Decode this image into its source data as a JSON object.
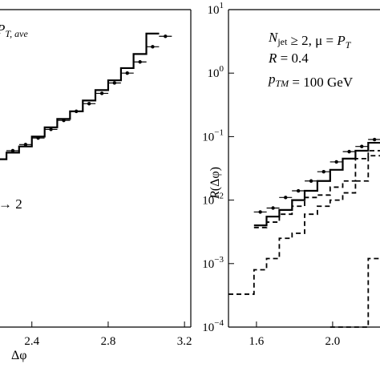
{
  "chart_data": [
    {
      "type": "step",
      "log_y": true,
      "xlim": [
        2.233,
        3.233
      ],
      "ylim": [
        0.0001,
        10
      ],
      "xticks": [
        2.4,
        2.8,
        3.2
      ],
      "xlabel": "Δφ",
      "annotations": [
        {
          "parts": [
            {
              "text": "P",
              "italic": true
            },
            {
              "text": "T, ave",
              "italic": true,
              "sub": true
            }
          ]
        },
        {
          "parts": [
            {
              "text": "→ 2"
            }
          ]
        }
      ],
      "series": [
        {
          "kind": "step",
          "dash": false,
          "color": "#000000",
          "bins": [
            2.2,
            2.267,
            2.333,
            2.4,
            2.467,
            2.533,
            2.6,
            2.667,
            2.733,
            2.8,
            2.867,
            2.933,
            3.0,
            3.067
          ],
          "values": [
            0.044,
            0.056,
            0.07,
            0.1,
            0.14,
            0.19,
            0.25,
            0.37,
            0.54,
            0.77,
            1.2,
            2.0,
            4.2
          ]
        },
        {
          "kind": "points",
          "color": "#000000",
          "x": [
            2.3,
            2.367,
            2.433,
            2.5,
            2.567,
            2.633,
            2.7,
            2.767,
            2.833,
            2.9,
            2.967,
            3.033,
            3.1
          ],
          "values": [
            0.06,
            0.075,
            0.095,
            0.13,
            0.18,
            0.25,
            0.33,
            0.48,
            0.7,
            1.0,
            1.5,
            2.6,
            3.8
          ]
        }
      ]
    },
    {
      "type": "step",
      "log_y": true,
      "xlim": [
        1.453,
        2.253
      ],
      "ylim": [
        0.0001,
        10
      ],
      "xticks": [
        1.6,
        {
          "value": 2,
          "label": "2.0"
        }
      ],
      "yticks": [
        {
          "value": 0.0001,
          "label": "10",
          "exponent": "−4"
        },
        {
          "value": 0.001,
          "label": "10",
          "exponent": "−3"
        },
        {
          "value": 0.01,
          "label": "10",
          "exponent": "−2"
        },
        {
          "value": 0.1,
          "label": "10",
          "exponent": "−1"
        },
        {
          "value": 1,
          "label": "10",
          "exponent": "0"
        },
        {
          "value": 10,
          "label": "10",
          "exponent": "1"
        }
      ],
      "ylabel": {
        "parts": [
          {
            "text": "R",
            "italic": true
          },
          {
            "text": "(Δφ)"
          }
        ]
      },
      "annotations": [
        {
          "parts": [
            {
              "text": "N",
              "italic": true
            },
            {
              "text": "jet",
              "sub": true
            },
            {
              "text": " ≥ 2, μ = "
            },
            {
              "text": "P",
              "italic": true
            },
            {
              "text": "T",
              "italic": true,
              "sub": true
            }
          ]
        },
        {
          "parts": [
            {
              "text": "R",
              "italic": true
            },
            {
              "text": " = 0.4"
            }
          ]
        },
        {
          "parts": [
            {
              "text": "p",
              "italic": true
            },
            {
              "text": "TM",
              "italic": true,
              "sub": true
            },
            {
              "text": " = 100 GeV"
            }
          ]
        }
      ],
      "series": [
        {
          "kind": "step",
          "dash": false,
          "color": "#000000",
          "bins": [
            1.587,
            1.653,
            1.72,
            1.787,
            1.853,
            1.92,
            1.987,
            2.053,
            2.12,
            2.187,
            2.253
          ],
          "values": [
            0.004,
            0.0055,
            0.007,
            0.01,
            0.014,
            0.02,
            0.03,
            0.045,
            0.06,
            0.08
          ]
        },
        {
          "kind": "step",
          "dash": true,
          "color": "#000000",
          "bins": [
            1.587,
            1.653,
            1.72,
            1.787,
            1.853,
            1.92,
            1.987,
            2.053,
            2.12,
            2.187,
            2.253
          ],
          "values": [
            0.0037,
            0.0045,
            0.006,
            0.008,
            0.011,
            0.012,
            0.016,
            0.02,
            0.045,
            0.06
          ]
        },
        {
          "kind": "step",
          "dash": true,
          "color": "#000000",
          "bins": [
            1.453,
            1.52,
            1.587,
            1.653,
            1.72,
            1.787,
            1.853,
            1.92,
            1.987,
            2.053,
            2.12,
            2.187,
            2.253
          ],
          "values": [
            0.00033,
            0.00033,
            0.0008,
            0.0012,
            0.0025,
            0.003,
            0.006,
            0.008,
            0.01,
            0.013,
            0.02,
            0.05
          ]
        },
        {
          "kind": "step",
          "dash": true,
          "color": "#000000",
          "bins": [
            1.987,
            2.053,
            2.12,
            2.187,
            2.253
          ],
          "values": [
            0.0001,
            0.0001,
            0.0001,
            0.0012
          ]
        },
        {
          "kind": "points",
          "color": "#000000",
          "x": [
            1.62,
            1.687,
            1.753,
            1.82,
            1.887,
            1.953,
            2.02,
            2.087,
            2.153,
            2.22
          ],
          "values": [
            0.0065,
            0.0075,
            0.011,
            0.014,
            0.02,
            0.028,
            0.04,
            0.058,
            0.07,
            0.09
          ]
        }
      ]
    }
  ]
}
